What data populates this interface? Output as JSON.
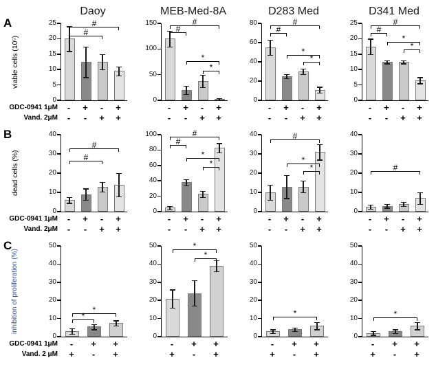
{
  "figure": {
    "column_titles": [
      "Daoy",
      "MEB-Med-8A",
      "D283 Med",
      "D341 Med"
    ],
    "colors": {
      "bar_fill": [
        "#d9d9d9",
        "#898989",
        "#c9c9c9",
        "#e3e3e3"
      ],
      "bar_fill_3": [
        "#d9d9d9",
        "#898989",
        "#d0d0d0"
      ],
      "bar_border": "#7a7a7a",
      "axis": "#000000",
      "panel_c_ylabel": "#2b4ea2"
    }
  },
  "chart_data": [
    {
      "type": "bar",
      "panel": "A",
      "ylabel": "viable cells (10⁵)",
      "ylabel_color": "#000000",
      "treatment_rows": [
        "GDC-0941 1μM",
        "Vand. 2μM"
      ],
      "charts": [
        {
          "column": "Daoy",
          "ylim": [
            0,
            25
          ],
          "yticks": [
            0,
            5,
            10,
            15,
            20,
            25
          ],
          "values": [
            20,
            12.5,
            12.5,
            9.5
          ],
          "errors": [
            4,
            5,
            2.5,
            1.5
          ],
          "signs": [
            [
              "-",
              "+",
              "-",
              "+"
            ],
            [
              "-",
              "-",
              "+",
              "+"
            ]
          ],
          "brackets": [
            {
              "from": 0,
              "to": 3,
              "symbol": "#",
              "y": 23.8
            },
            {
              "from": 0,
              "to": 2,
              "symbol": "#",
              "y": 21
            }
          ]
        },
        {
          "column": "MEB-Med-8A",
          "ylim": [
            0,
            150
          ],
          "yticks": [
            0,
            50,
            100,
            150
          ],
          "values": [
            120,
            20,
            38,
            2
          ],
          "errors": [
            15,
            8,
            12,
            2
          ],
          "signs": [
            [
              "-",
              "+",
              "-",
              "+"
            ],
            [
              "-",
              "-",
              "+",
              "+"
            ]
          ],
          "brackets": [
            {
              "from": 0,
              "to": 3,
              "symbol": "#",
              "y": 146
            },
            {
              "from": 0,
              "to": 1,
              "symbol": "#",
              "y": 132
            },
            {
              "from": 1,
              "to": 3,
              "symbol": "*",
              "y": 76
            },
            {
              "from": 2,
              "to": 3,
              "symbol": "*",
              "y": 58
            }
          ]
        },
        {
          "column": "D283 Med",
          "ylim": [
            0,
            80
          ],
          "yticks": [
            0,
            20,
            40,
            60,
            80
          ],
          "values": [
            55,
            25,
            30,
            11
          ],
          "errors": [
            8,
            2,
            3,
            3
          ],
          "signs": [
            [
              "-",
              "+",
              "-",
              "+"
            ],
            [
              "-",
              "-",
              "+",
              "+"
            ]
          ],
          "brackets": [
            {
              "from": 0,
              "to": 3,
              "symbol": "#",
              "y": 78
            },
            {
              "from": 0,
              "to": 1,
              "symbol": "#",
              "y": 70
            },
            {
              "from": 1,
              "to": 3,
              "symbol": "*",
              "y": 47
            },
            {
              "from": 2,
              "to": 3,
              "symbol": "*",
              "y": 40
            }
          ]
        },
        {
          "column": "D341 Med",
          "ylim": [
            0,
            25
          ],
          "yticks": [
            0,
            5,
            10,
            15,
            20,
            25
          ],
          "values": [
            17.5,
            12.5,
            12.5,
            6.5
          ],
          "errors": [
            2.5,
            0.5,
            0.5,
            1
          ],
          "signs": [
            [
              "-",
              "+",
              "-",
              "+"
            ],
            [
              "-",
              "-",
              "+",
              "+"
            ]
          ],
          "brackets": [
            {
              "from": 0,
              "to": 3,
              "symbol": "#",
              "y": 24.3
            },
            {
              "from": 0,
              "to": 1,
              "symbol": "#",
              "y": 21.8
            },
            {
              "from": 1,
              "to": 3,
              "symbol": "*",
              "y": 19
            },
            {
              "from": 2,
              "to": 3,
              "symbol": "*",
              "y": 16.5
            }
          ]
        }
      ]
    },
    {
      "type": "bar",
      "panel": "B",
      "ylabel": "dead cells (%)",
      "ylabel_color": "#000000",
      "treatment_rows": [
        "GDC-0941 1μM",
        "Vand. 2μM"
      ],
      "charts": [
        {
          "column": "Daoy",
          "ylim": [
            0,
            40
          ],
          "yticks": [
            0,
            10,
            20,
            30,
            40
          ],
          "values": [
            6,
            9,
            13,
            14
          ],
          "errors": [
            1.5,
            3,
            2.5,
            6
          ],
          "signs": [
            [
              "-",
              "+",
              "-",
              "+"
            ],
            [
              "-",
              "-",
              "+",
              "+"
            ]
          ],
          "brackets": [
            {
              "from": 0,
              "to": 3,
              "symbol": "#",
              "y": 33
            },
            {
              "from": 0,
              "to": 2,
              "symbol": "#",
              "y": 26.5
            }
          ]
        },
        {
          "column": "MEB-Med-8A",
          "ylim": [
            0,
            100
          ],
          "yticks": [
            0,
            20,
            40,
            60,
            80,
            100
          ],
          "values": [
            5,
            38,
            23,
            83
          ],
          "errors": [
            2,
            4,
            4,
            6
          ],
          "signs": [
            [
              "-",
              "+",
              "-",
              "+"
            ],
            [
              "-",
              "-",
              "+",
              "+"
            ]
          ],
          "brackets": [
            {
              "from": 0,
              "to": 3,
              "symbol": "#",
              "y": 97
            },
            {
              "from": 0,
              "to": 1,
              "symbol": "#",
              "y": 87
            },
            {
              "from": 1,
              "to": 3,
              "symbol": "*",
              "y": 70
            },
            {
              "from": 2,
              "to": 3,
              "symbol": "*",
              "y": 58
            }
          ]
        },
        {
          "column": "D283 Med",
          "ylim": [
            0,
            40
          ],
          "yticks": [
            0,
            10,
            20,
            30,
            40
          ],
          "values": [
            10,
            13,
            13,
            31
          ],
          "errors": [
            4,
            6,
            3,
            4
          ],
          "signs": [
            [
              "-",
              "+",
              "-",
              "+"
            ],
            [
              "-",
              "-",
              "+",
              "+"
            ]
          ],
          "brackets": [
            {
              "from": 0,
              "to": 3,
              "symbol": "#",
              "y": 37.5
            },
            {
              "from": 1,
              "to": 3,
              "symbol": "*",
              "y": 25
            },
            {
              "from": 2,
              "to": 3,
              "symbol": "*",
              "y": 21
            }
          ]
        },
        {
          "column": "D341 Med",
          "ylim": [
            0,
            40
          ],
          "yticks": [
            0,
            10,
            20,
            30,
            40
          ],
          "values": [
            2.5,
            3,
            4,
            7
          ],
          "errors": [
            1,
            1,
            1,
            3
          ],
          "signs": [
            [
              "-",
              "+",
              "-",
              "+"
            ],
            [
              "-",
              "-",
              "+",
              "+"
            ]
          ],
          "brackets": [
            {
              "from": 0,
              "to": 3,
              "symbol": "#",
              "y": 21
            }
          ]
        }
      ]
    },
    {
      "type": "bar",
      "panel": "C",
      "ylabel": "inhibition of proliferation (%)",
      "ylabel_color": "#2b4ea2",
      "treatment_rows": [
        "GDC-0941 1μM",
        "Vand. 2 μM"
      ],
      "charts": [
        {
          "column": "Daoy",
          "ylim": [
            0,
            50
          ],
          "yticks": [
            0,
            10,
            20,
            30,
            40,
            50
          ],
          "values": [
            3,
            5.5,
            7.5
          ],
          "errors": [
            1.5,
            1.5,
            1.5
          ],
          "signs": [
            [
              "-",
              "+",
              "+"
            ],
            [
              "+",
              "-",
              "+"
            ]
          ],
          "brackets": [
            {
              "from": 0,
              "to": 2,
              "symbol": "*",
              "y": 13
            },
            {
              "from": 0,
              "to": 1,
              "symbol": "*",
              "y": 9.5
            }
          ]
        },
        {
          "column": "MEB-Med-8A",
          "ylim": [
            0,
            50
          ],
          "yticks": [
            0,
            10,
            20,
            30,
            40,
            50
          ],
          "values": [
            21,
            24,
            39
          ],
          "errors": [
            5,
            7,
            3
          ],
          "signs": [
            [
              "-",
              "+",
              "+"
            ],
            [
              "+",
              "-",
              "+"
            ]
          ],
          "brackets": [
            {
              "from": 0,
              "to": 2,
              "symbol": "*",
              "y": 48
            },
            {
              "from": 1,
              "to": 2,
              "symbol": "*",
              "y": 43
            }
          ]
        },
        {
          "column": "D283 Med",
          "ylim": [
            0,
            50
          ],
          "yticks": [
            0,
            10,
            20,
            30,
            40,
            50
          ],
          "values": [
            3,
            4,
            6
          ],
          "errors": [
            1,
            1,
            2
          ],
          "signs": [
            [
              "-",
              "+",
              "+"
            ],
            [
              "+",
              "-",
              "+"
            ]
          ],
          "brackets": [
            {
              "from": 0,
              "to": 2,
              "symbol": "*",
              "y": 11
            }
          ]
        },
        {
          "column": "D341 Med",
          "ylim": [
            0,
            50
          ],
          "yticks": [
            0,
            10,
            20,
            30,
            40,
            50
          ],
          "values": [
            2,
            3,
            6
          ],
          "errors": [
            1,
            1,
            2
          ],
          "signs": [
            [
              "-",
              "+",
              "+"
            ],
            [
              "+",
              "-",
              "+"
            ]
          ],
          "brackets": [
            {
              "from": 0,
              "to": 2,
              "symbol": "*",
              "y": 10.5
            }
          ]
        }
      ]
    }
  ]
}
